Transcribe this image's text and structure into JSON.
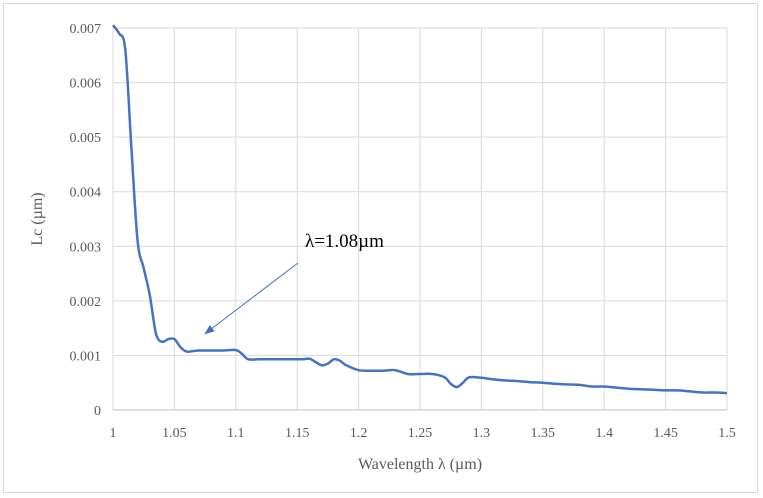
{
  "chart_data": {
    "type": "line",
    "title": "",
    "xlabel": "Wavelength λ (µm)",
    "ylabel": "Lc (µm)",
    "xlim": [
      1,
      1.5
    ],
    "ylim": [
      0,
      0.007
    ],
    "x_ticks": [
      "1",
      "1.05",
      "1.1",
      "1.15",
      "1.2",
      "1.25",
      "1.3",
      "1.35",
      "1.4",
      "1.45",
      "1.5"
    ],
    "y_ticks": [
      "0",
      "0.001",
      "0.002",
      "0.003",
      "0.004",
      "0.005",
      "0.006",
      "0.007"
    ],
    "grid": "vertical and horizontal",
    "legend": "none",
    "series": [
      {
        "color": "#4472c4",
        "x": [
          1.0,
          1.005,
          1.01,
          1.015,
          1.02,
          1.025,
          1.03,
          1.035,
          1.04,
          1.045,
          1.05,
          1.055,
          1.06,
          1.065,
          1.07,
          1.08,
          1.09,
          1.1,
          1.105,
          1.11,
          1.12,
          1.13,
          1.14,
          1.15,
          1.155,
          1.16,
          1.165,
          1.17,
          1.175,
          1.18,
          1.185,
          1.19,
          1.2,
          1.21,
          1.22,
          1.23,
          1.24,
          1.25,
          1.26,
          1.27,
          1.275,
          1.28,
          1.285,
          1.29,
          1.3,
          1.31,
          1.32,
          1.33,
          1.34,
          1.35,
          1.36,
          1.37,
          1.38,
          1.39,
          1.4,
          1.41,
          1.42,
          1.43,
          1.44,
          1.45,
          1.46,
          1.47,
          1.48,
          1.49,
          1.5
        ],
        "values": [
          0.00705,
          0.0069,
          0.0066,
          0.0048,
          0.0031,
          0.0026,
          0.0021,
          0.0014,
          0.00125,
          0.0013,
          0.0013,
          0.00115,
          0.00107,
          0.00108,
          0.00109,
          0.00109,
          0.00109,
          0.0011,
          0.00103,
          0.00093,
          0.00093,
          0.00093,
          0.00093,
          0.00093,
          0.00093,
          0.00094,
          0.00088,
          0.00082,
          0.00085,
          0.00093,
          0.0009,
          0.00082,
          0.00073,
          0.00072,
          0.00072,
          0.00073,
          0.00066,
          0.00066,
          0.00066,
          0.0006,
          0.00048,
          0.00042,
          0.0005,
          0.0006,
          0.00059,
          0.00056,
          0.00054,
          0.00053,
          0.00051,
          0.0005,
          0.00048,
          0.00047,
          0.00046,
          0.00043,
          0.00043,
          0.00041,
          0.00039,
          0.00038,
          0.00037,
          0.00036,
          0.00036,
          0.00034,
          0.00032,
          0.00032,
          0.00031
        ]
      }
    ],
    "annotations": [
      {
        "text": "λ=1.08µm",
        "point_x": 1.075,
        "point_y": 0.0014
      }
    ]
  }
}
